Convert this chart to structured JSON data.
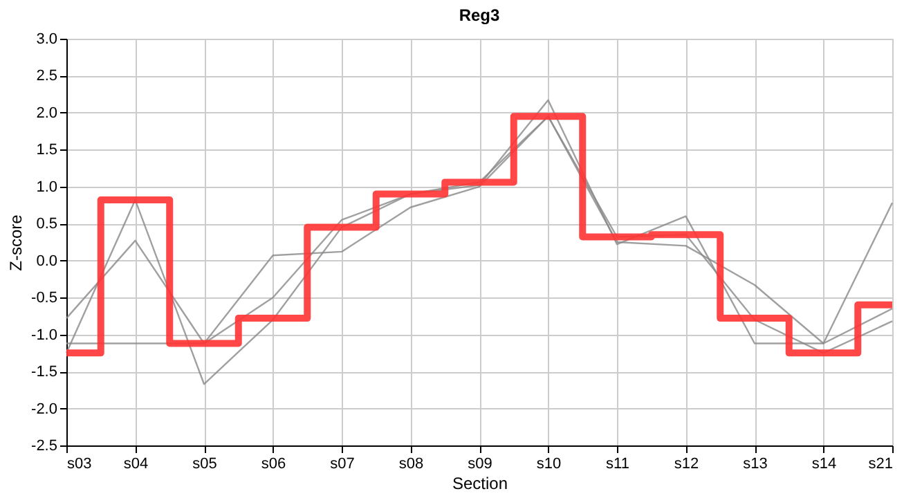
{
  "chart_data": {
    "type": "line",
    "title": "Reg3",
    "xlabel": "Section",
    "ylabel": "Z-score",
    "categories": [
      "s03",
      "s04",
      "s05",
      "s06",
      "s07",
      "s08",
      "s09",
      "s10",
      "s11",
      "s12",
      "s13",
      "s14",
      "s21"
    ],
    "ylim": [
      -2.5,
      3.0
    ],
    "yticks": [
      {
        "value": -2.5,
        "label": "-2.5"
      },
      {
        "value": -2,
        "label": "-2.0"
      },
      {
        "value": -1.5,
        "label": "-1.5"
      },
      {
        "value": -1,
        "label": "-1.0"
      },
      {
        "value": -0.5,
        "label": "-0.5"
      },
      {
        "value": 0,
        "label": "0.0"
      },
      {
        "value": 0.5,
        "label": "0.5"
      },
      {
        "value": 1,
        "label": "1.0"
      },
      {
        "value": 1.5,
        "label": "1.5"
      },
      {
        "value": 2,
        "label": "2.0"
      },
      {
        "value": 2.5,
        "label": "2.5"
      },
      {
        "value": 3,
        "label": "3.0"
      }
    ],
    "grid": true,
    "marker": "none",
    "line_style": "solid",
    "series": [
      {
        "color": "#888888",
        "values": [
          -0.78,
          0.27,
          -1.12,
          0.07,
          0.12,
          0.72,
          1.0,
          1.95,
          0.25,
          0.2,
          -0.33,
          -1.12,
          0.78
        ]
      },
      {
        "color": "#888888",
        "values": [
          -1.12,
          -1.12,
          -1.12,
          -0.5,
          0.55,
          0.9,
          1.02,
          2.17,
          0.22,
          0.6,
          -1.12,
          -1.12,
          -0.65
        ]
      },
      {
        "color": "#888888",
        "values": [
          -1.25,
          0.82,
          -1.67,
          -0.8,
          0.45,
          0.9,
          1.06,
          1.95,
          0.32,
          0.35,
          -0.8,
          -1.25,
          -0.82
        ]
      },
      {
        "type": "step",
        "color": "#ff3333",
        "values": [
          -1.25,
          0.82,
          -1.12,
          -0.78,
          0.45,
          0.9,
          1.06,
          1.95,
          0.32,
          0.35,
          -0.78,
          -1.25,
          -0.6
        ]
      }
    ]
  }
}
